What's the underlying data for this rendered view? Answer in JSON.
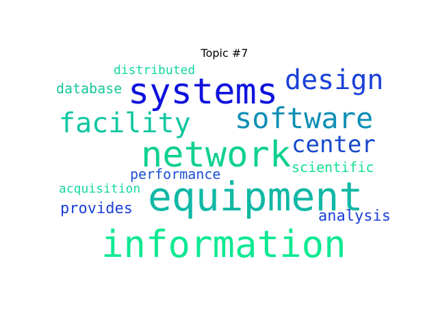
{
  "title": "Topic #7",
  "words": [
    {
      "text": "systems",
      "color": "#0f12dc"
    },
    {
      "text": "design",
      "color": "#1a3fd8"
    },
    {
      "text": "distributed",
      "color": "#11d6a0"
    },
    {
      "text": "database",
      "color": "#15c79a"
    },
    {
      "text": "software",
      "color": "#0f8fb5"
    },
    {
      "text": "facility",
      "color": "#0fc6a0"
    },
    {
      "text": "network",
      "color": "#0fd090"
    },
    {
      "text": "center",
      "color": "#1648cc"
    },
    {
      "text": "performance",
      "color": "#1b4fd2"
    },
    {
      "text": "scientific",
      "color": "#14e090"
    },
    {
      "text": "acquisition",
      "color": "#15d8a0"
    },
    {
      "text": "equipment",
      "color": "#10b8a5"
    },
    {
      "text": "provides",
      "color": "#1a3fd8"
    },
    {
      "text": "analysis",
      "color": "#1a3fd8"
    },
    {
      "text": "information",
      "color": "#0ee992"
    }
  ]
}
